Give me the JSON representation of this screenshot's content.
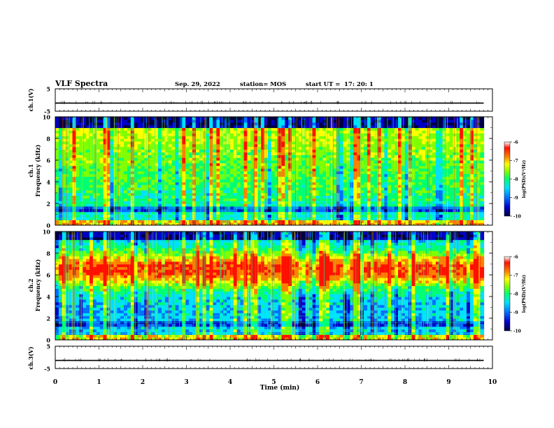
{
  "header": {
    "title": "VLF Spectra",
    "date": "Sep. 29, 2022",
    "station": "station= MOS",
    "start_label": "start  UT  =",
    "start_time": "17: 20: 1"
  },
  "chart_data": {
    "type": "heatmap",
    "x_axis": {
      "label": "Time  (min)",
      "range": [
        0,
        10
      ],
      "ticks": [
        "0",
        "1",
        "2",
        "3",
        "4",
        "5",
        "6",
        "7",
        "8",
        "9",
        "10"
      ]
    },
    "panels": [
      {
        "id": "ch1-waveform",
        "type": "line",
        "ylabel": "ch.1(V)",
        "yrange": [
          -5,
          5
        ],
        "yticks": [
          "5",
          "-5"
        ],
        "baseline_value": -1.4,
        "data_end_min": 9.8
      },
      {
        "id": "ch1-spectrogram",
        "type": "heatmap",
        "ylabel_line1": "ch.1",
        "ylabel_line2": "Frequency  (kHz)",
        "yrange": [
          0,
          10
        ],
        "yticks": [
          "0",
          "2",
          "4",
          "6",
          "8",
          "10"
        ],
        "data_end_min": 9.8,
        "colorbar": {
          "label": "log(PSD)(V²/Hz)",
          "range": [
            -10,
            -6
          ],
          "ticks": [
            "-6",
            "-7",
            "-8",
            "-9",
            "-10"
          ]
        }
      },
      {
        "id": "ch2-spectrogram",
        "type": "heatmap",
        "ylabel_line1": "ch.2",
        "ylabel_line2": "Frequency  (kHz)",
        "yrange": [
          0,
          10
        ],
        "yticks": [
          "0",
          "2",
          "4",
          "6",
          "8",
          "10"
        ],
        "data_end_min": 9.8,
        "colorbar": {
          "label": "log(PSD)(V²/Hz)",
          "range": [
            -10,
            -6
          ],
          "ticks": [
            "-6",
            "-7",
            "-8",
            "-9",
            "-10"
          ]
        }
      },
      {
        "id": "ch3-waveform",
        "type": "line",
        "ylabel": "ch.3(V)",
        "yrange": [
          -5,
          5
        ],
        "yticks": [
          "5",
          "-5"
        ],
        "baseline_value": -1.4,
        "data_end_min": 9.8
      }
    ],
    "colormap": [
      "#000040",
      "#0000c8",
      "#0070ff",
      "#00e0ff",
      "#00ff70",
      "#80ff00",
      "#ffff00",
      "#ff8000",
      "#ff1000",
      "#ffffff"
    ]
  }
}
